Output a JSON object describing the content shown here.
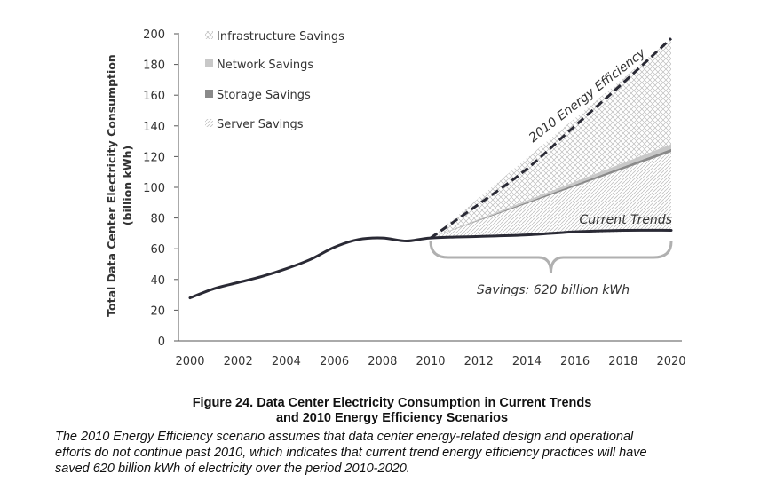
{
  "chart_data": {
    "type": "line",
    "title": "",
    "xlabel": "",
    "ylabel": "Total Data Center Electricity Consumption",
    "ylabel_unit": "(billion kWh)",
    "xlim": [
      2000,
      2020
    ],
    "ylim": [
      0,
      200
    ],
    "x_ticks": [
      "2000",
      "2002",
      "2004",
      "2006",
      "2008",
      "2010",
      "2012",
      "2014",
      "2016",
      "2018",
      "2020"
    ],
    "y_ticks": [
      "0",
      "20",
      "40",
      "60",
      "80",
      "100",
      "120",
      "140",
      "160",
      "180",
      "200"
    ],
    "grid": false,
    "legend_position": "top-left",
    "series": [
      {
        "name": "2010 Energy Efficiency",
        "style": "dashed",
        "x": [
          2010,
          2012,
          2014,
          2016,
          2018,
          2020
        ],
        "y": [
          67,
          89,
          112,
          140,
          168,
          197
        ]
      },
      {
        "name": "Current Trends",
        "style": "solid",
        "x": [
          2000,
          2001,
          2002,
          2003,
          2004,
          2005,
          2006,
          2007,
          2008,
          2009,
          2010,
          2012,
          2014,
          2016,
          2018,
          2020
        ],
        "y": [
          28,
          34,
          38,
          42,
          47,
          53,
          61,
          66,
          67,
          65,
          67,
          68,
          69,
          71,
          72,
          72
        ]
      }
    ],
    "stacked_areas": [
      {
        "name": "Server Savings",
        "pattern": "diagonal-light",
        "x": [
          2010,
          2020
        ],
        "y_low": [
          67,
          72
        ],
        "y_high": [
          67,
          123
        ]
      },
      {
        "name": "Storage Savings",
        "pattern": "solid-dark",
        "x": [
          2010,
          2020
        ],
        "y_low": [
          67,
          123
        ],
        "y_high": [
          67,
          125
        ]
      },
      {
        "name": "Network Savings",
        "pattern": "solid-light",
        "x": [
          2010,
          2020
        ],
        "y_low": [
          67,
          125
        ],
        "y_high": [
          67,
          128
        ]
      },
      {
        "name": "Infrastructure Savings",
        "pattern": "crosshatch",
        "x": [
          2010,
          2020
        ],
        "y_low": [
          67,
          128
        ],
        "y_high": [
          67,
          197
        ]
      }
    ],
    "legend": [
      {
        "label": "Infrastructure Savings",
        "pattern": "crosshatch"
      },
      {
        "label": "Network Savings",
        "pattern": "solid-light"
      },
      {
        "label": "Storage Savings",
        "pattern": "solid-dark"
      },
      {
        "label": "Server Savings",
        "pattern": "diagonal-light"
      }
    ],
    "annotations": {
      "efficiency_label": "2010 Energy Efficiency",
      "trends_label": "Current Trends",
      "savings_label": "Savings: 620 billion kWh",
      "brace_range": [
        2010,
        2020
      ]
    }
  },
  "caption": {
    "title_line1": "Figure 24. Data Center Electricity Consumption in Current Trends",
    "title_line2": "and 2010 Energy Efficiency Scenarios",
    "body_line1": "The 2010 Energy Efficiency scenario assumes that data center energy-related design and operational",
    "body_line2": "efforts do not continue past 2010, which indicates that current trend energy efficiency practices will have",
    "body_line3": "saved 620 billion kWh of electricity over the period 2010-2020."
  },
  "colors": {
    "line": "#2a2a35",
    "axis": "#555555",
    "storage": "#8a8a8a",
    "network": "#c8c8c8",
    "hatch": "#b5b5b5",
    "brace": "#b0b0b0"
  }
}
